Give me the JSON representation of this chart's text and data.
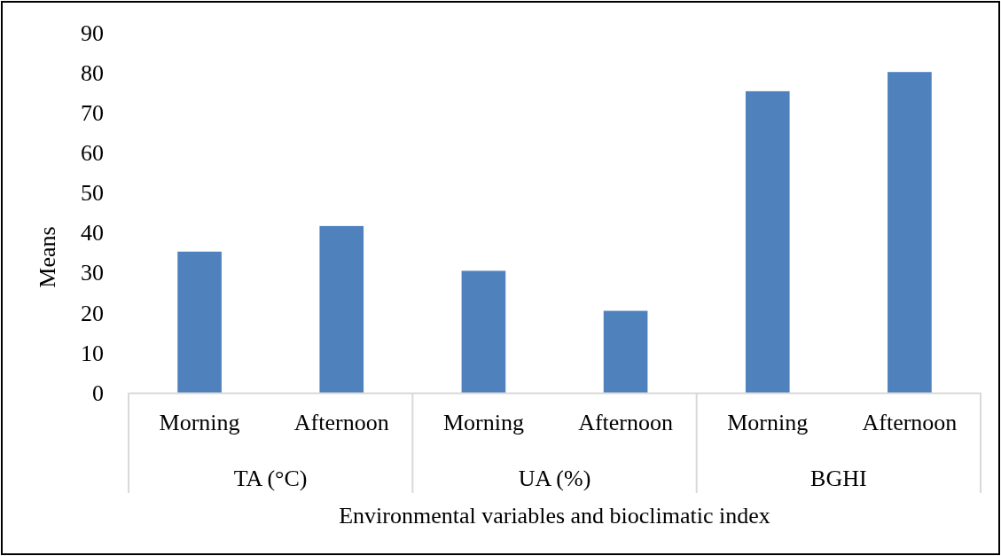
{
  "chart_data": {
    "type": "bar",
    "xlabel": "Environmental variables and bioclimatic index",
    "ylabel": "Means",
    "categories": [
      "Morning",
      "Afternoon",
      "Morning",
      "Afternoon",
      "Morning",
      "Afternoon"
    ],
    "values": [
      35.3,
      41.7,
      30.5,
      20.5,
      75.4,
      80.2
    ],
    "color": "#4f81bd",
    "ylim": [
      0,
      90
    ],
    "yticks": [
      0,
      10,
      20,
      30,
      40,
      50,
      60,
      70,
      80,
      90
    ],
    "grid": false,
    "annotations": [
      "TA (°C)",
      "UA (%)",
      "BGHI"
    ]
  }
}
